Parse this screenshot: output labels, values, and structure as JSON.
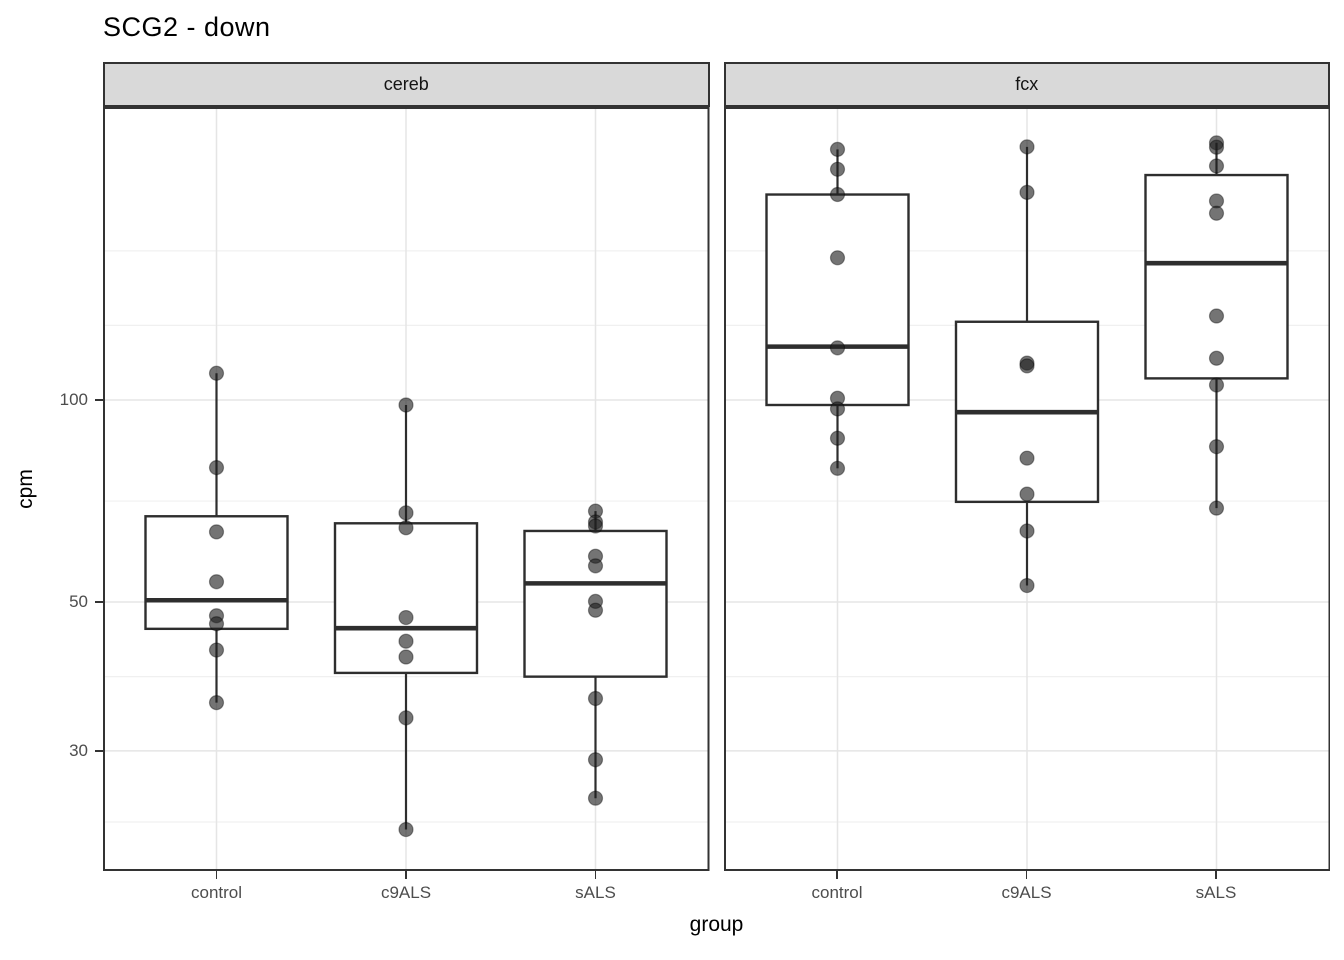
{
  "title": "SCG2 - down",
  "colors": {
    "background": "#FFFFFF",
    "strip_fill": "#D9D9D9",
    "panel_border": "#333333",
    "grid_major": "#E5E5E5",
    "grid_minor": "#F0F0F0",
    "box_stroke": "#2E2E2E",
    "box_fill": "#FFFFFF",
    "point_fill": "#1F1F1F",
    "tick_mark": "#333333",
    "tick_label_color": "#4D4D4D",
    "text_color": "#000000"
  },
  "chart_data": {
    "type": "boxplot",
    "title": "SCG2 - down",
    "xlabel": "group",
    "ylabel": "cpm",
    "y_scale": "log10",
    "y_domain": [
      19.9,
      270
    ],
    "grid": true,
    "y_ticks": [
      {
        "value": 100,
        "label": "100"
      },
      {
        "value": 50,
        "label": "50"
      },
      {
        "value": 30,
        "label": "30"
      }
    ],
    "y_minor_gridlines": [
      166.8,
      129.2,
      70.7,
      38.7,
      23.5
    ],
    "categories": [
      "control",
      "c9ALS",
      "sALS"
    ],
    "facets": [
      {
        "label": "cereb",
        "groups": [
          {
            "category": "control",
            "box": {
              "lower": 45.6,
              "median": 50.3,
              "upper": 67.1,
              "whisker_low": 35.4,
              "whisker_high": 109.6
            },
            "points": [
              109.6,
              79.3,
              63.6,
              53.6,
              47.7,
              46.4,
              42.4,
              35.4
            ]
          },
          {
            "category": "c9ALS",
            "box": {
              "lower": 39.2,
              "median": 45.7,
              "upper": 65.5,
              "whisker_low": 22.9,
              "whisker_high": 98.3
            },
            "points": [
              98.3,
              67.9,
              64.5,
              47.4,
              43.7,
              41.4,
              33.6,
              22.9
            ]
          },
          {
            "category": "sALS",
            "box": {
              "lower": 38.7,
              "median": 53.3,
              "upper": 63.8,
              "whisker_low": 25.5,
              "whisker_high": 68.3
            },
            "points": [
              68.3,
              65.8,
              64.9,
              58.5,
              56.6,
              50.1,
              48.6,
              35.9,
              29.1,
              25.5
            ]
          }
        ]
      },
      {
        "label": "fcx",
        "groups": [
          {
            "category": "control",
            "box": {
              "lower": 98.3,
              "median": 120.1,
              "upper": 202.4,
              "whisker_low": 79.1,
              "whisker_high": 236.3
            },
            "points": [
              236.3,
              220.7,
              202.4,
              162.9,
              119.6,
              100.6,
              97.0,
              87.7,
              79.1
            ]
          },
          {
            "category": "c9ALS",
            "box": {
              "lower": 70.5,
              "median": 95.9,
              "upper": 130.8,
              "whisker_low": 52.9,
              "whisker_high": 238.4
            },
            "points": [
              238.4,
              203.9,
              113.5,
              112.4,
              81.9,
              72.4,
              63.8,
              52.9
            ]
          },
          {
            "category": "sALS",
            "box": {
              "lower": 107.7,
              "median": 159.9,
              "upper": 216.4,
              "whisker_low": 69.0,
              "whisker_high": 241.7
            },
            "points": [
              241.7,
              238.1,
              223.2,
              198.0,
              189.8,
              133.4,
              115.4,
              105.3,
              85.2,
              69.0
            ]
          }
        ]
      }
    ]
  }
}
